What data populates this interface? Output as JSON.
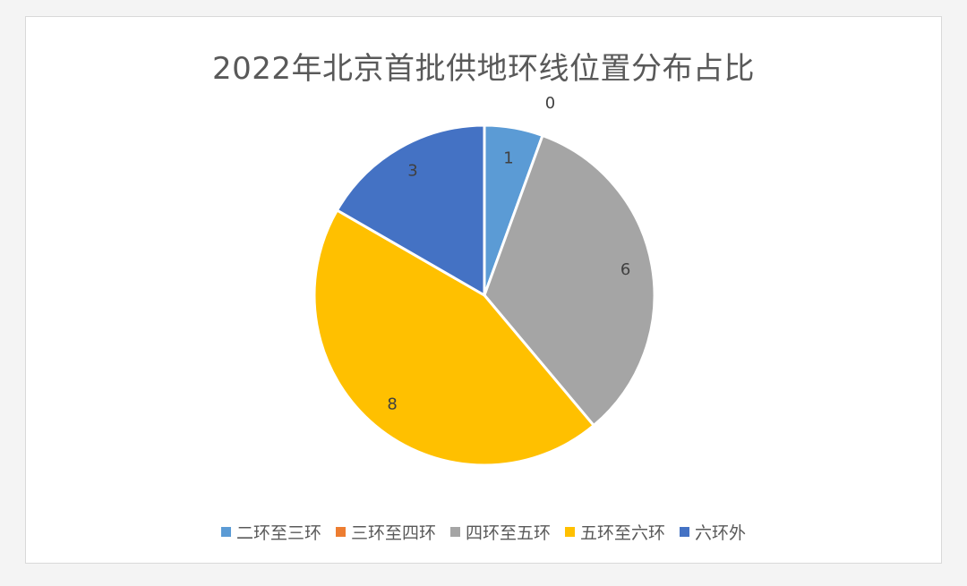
{
  "chart_data": {
    "type": "pie",
    "title": "2022年北京首批供地环线位置分布占比",
    "categories": [
      "二环至三环",
      "三环至四环",
      "四环至五环",
      "五环至六环",
      "六环外"
    ],
    "values": [
      1,
      0,
      6,
      8,
      3
    ],
    "colors": [
      "#5b9bd5",
      "#ed7d31",
      "#a5a5a5",
      "#ffc000",
      "#4472c4"
    ],
    "data_labels": [
      "1",
      "0",
      "6",
      "8",
      "3"
    ],
    "legend_position": "bottom",
    "start_angle": "12 o'clock, clockwise"
  }
}
